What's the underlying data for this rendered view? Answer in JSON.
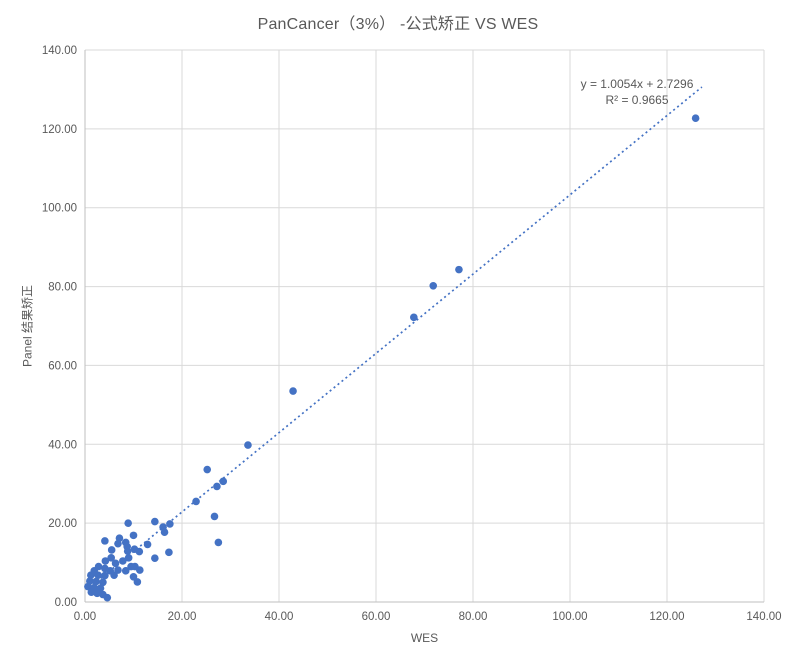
{
  "chart_data": {
    "type": "scatter",
    "title": "PanCancer（3%） -公式矫正  VS WES",
    "xlabel": "WES",
    "ylabel": "Panel 结果矫正",
    "xlim": [
      0,
      140
    ],
    "ylim": [
      0,
      140
    ],
    "grid": true,
    "legend": "none",
    "x_ticks": [
      {
        "value": 0,
        "label": "0.00"
      },
      {
        "value": 20,
        "label": "20.00"
      },
      {
        "value": 40,
        "label": "40.00"
      },
      {
        "value": 60,
        "label": "60.00"
      },
      {
        "value": 80,
        "label": "80.00"
      },
      {
        "value": 100,
        "label": "100.00"
      },
      {
        "value": 120,
        "label": "120.00"
      },
      {
        "value": 140,
        "label": "140.00"
      }
    ],
    "y_ticks": [
      {
        "value": 0,
        "label": "0.00"
      },
      {
        "value": 20,
        "label": "20.00"
      },
      {
        "value": 40,
        "label": "40.00"
      },
      {
        "value": 60,
        "label": "60.00"
      },
      {
        "value": 80,
        "label": "80.00"
      },
      {
        "value": 100,
        "label": "100.00"
      },
      {
        "value": 120,
        "label": "120.00"
      },
      {
        "value": 140,
        "label": "140.00"
      }
    ],
    "colors": {
      "point": "#4472C4",
      "text": "#595959",
      "grid": "#D9D9D9",
      "axis": "#BFBFBF",
      "background": "#FFFFFF"
    },
    "trendline": {
      "slope": 1.0054,
      "intercept": 2.7296,
      "x_start": 0.8,
      "x_end": 127.2,
      "style": "dotted",
      "label": "y = 1.0054x  + 2.7296",
      "r2_label": "R² = 0.9665"
    },
    "points": [
      [
        125.9,
        122.7
      ],
      [
        77.1,
        84.3
      ],
      [
        71.8,
        80.2
      ],
      [
        67.8,
        72.2
      ],
      [
        42.9,
        53.5
      ],
      [
        33.6,
        39.8
      ],
      [
        25.2,
        33.6
      ],
      [
        28.5,
        30.6
      ],
      [
        27.2,
        29.3
      ],
      [
        22.9,
        25.5
      ],
      [
        26.7,
        21.7
      ],
      [
        27.5,
        15.1
      ],
      [
        14.4,
        20.4
      ],
      [
        17.5,
        19.8
      ],
      [
        16.1,
        19.0
      ],
      [
        16.4,
        17.7
      ],
      [
        17.3,
        12.6
      ],
      [
        14.4,
        11.1
      ],
      [
        12.9,
        14.6
      ],
      [
        8.9,
        20.0
      ],
      [
        10.0,
        16.9
      ],
      [
        7.1,
        16.2
      ],
      [
        4.1,
        15.5
      ],
      [
        8.4,
        15.1
      ],
      [
        6.8,
        14.8
      ],
      [
        8.7,
        14.0
      ],
      [
        5.5,
        13.2
      ],
      [
        8.8,
        12.9
      ],
      [
        10.2,
        13.4
      ],
      [
        11.2,
        12.8
      ],
      [
        10.3,
        9.0
      ],
      [
        11.3,
        8.1
      ],
      [
        10.0,
        6.4
      ],
      [
        10.8,
        5.1
      ],
      [
        5.4,
        11.2
      ],
      [
        4.2,
        10.4
      ],
      [
        6.3,
        9.8
      ],
      [
        7.8,
        10.4
      ],
      [
        9.0,
        11.2
      ],
      [
        9.5,
        9.0
      ],
      [
        8.4,
        7.9
      ],
      [
        6.8,
        8.1
      ],
      [
        5.2,
        7.9
      ],
      [
        4.1,
        8.5
      ],
      [
        2.8,
        9.0
      ],
      [
        1.9,
        7.9
      ],
      [
        1.2,
        6.8
      ],
      [
        2.7,
        6.8
      ],
      [
        4.1,
        6.7
      ],
      [
        6.0,
        6.8
      ],
      [
        1.0,
        5.3
      ],
      [
        2.3,
        5.2
      ],
      [
        3.7,
        5.0
      ],
      [
        0.6,
        3.9
      ],
      [
        1.9,
        3.6
      ],
      [
        3.2,
        3.5
      ],
      [
        1.3,
        2.5
      ],
      [
        2.5,
        2.2
      ],
      [
        3.7,
        1.9
      ],
      [
        4.6,
        1.1
      ]
    ]
  }
}
